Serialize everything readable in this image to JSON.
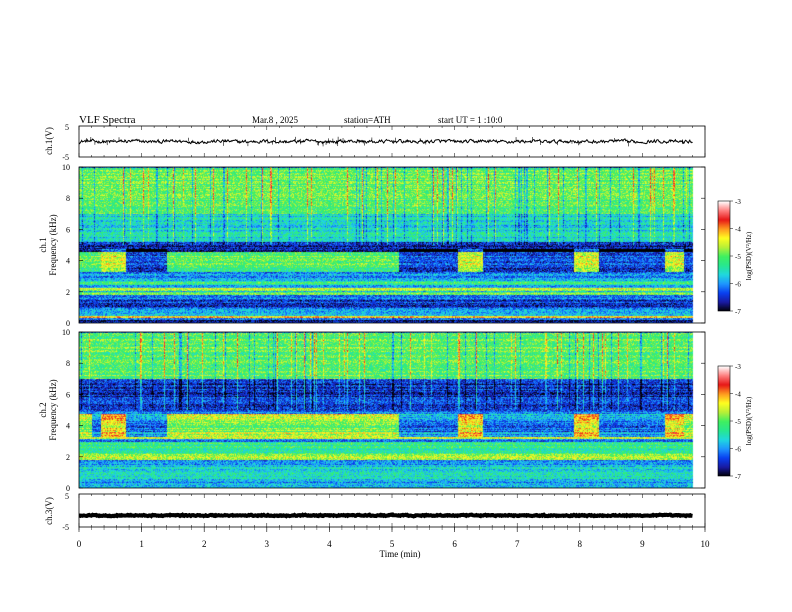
{
  "header": {
    "title": "VLF Spectra",
    "date": "Mar.8 , 2025",
    "station": "station=ATH",
    "start": "start UT = 1 :10:0"
  },
  "colors": {
    "trace": "#000000",
    "colormap": [
      "#000000",
      "#1a1aa0",
      "#0a3ff0",
      "#1e96ff",
      "#20d8e0",
      "#28e890",
      "#40f060",
      "#b8f038",
      "#ffff20",
      "#ff9a20",
      "#e81818",
      "#ff8080",
      "#ffffff"
    ]
  },
  "chart_data": [
    {
      "type": "line",
      "panel": "ch1-waveform",
      "ylabel": "ch.1(V)",
      "yticklabels": [
        "5",
        "-5"
      ],
      "ylim": [
        -5,
        5
      ],
      "xlim": [
        0,
        10
      ],
      "x_extent": [
        0,
        9.8
      ],
      "series": [
        {
          "level": 0,
          "amplitude": 0.45,
          "spike_amplitude": 1.6
        }
      ]
    },
    {
      "type": "heatmap",
      "panel": "ch1-spectrogram",
      "ylabel_top": "ch.1",
      "ylabel": "Frequency (kHz)",
      "ylim": [
        0,
        10
      ],
      "yticks": [
        0,
        2,
        4,
        6,
        8,
        10
      ],
      "xlim": [
        0,
        10
      ],
      "x_extent": [
        0,
        9.8
      ],
      "dark_windows_min": [
        [
          0.35,
          0.75
        ],
        [
          0.75,
          1.4
        ],
        [
          5.1,
          6.05
        ],
        [
          6.45,
          7.9
        ],
        [
          8.3,
          9.35
        ],
        [
          9.65,
          9.8
        ]
      ],
      "bright_windows_min": [
        [
          0.35,
          0.75
        ],
        [
          6.05,
          6.45
        ],
        [
          7.9,
          8.3
        ],
        [
          9.35,
          9.65
        ]
      ],
      "bands_khz": [
        {
          "f": [
            0.05,
            0.25
          ],
          "level": -6.6
        },
        {
          "f": [
            0.35,
            0.45
          ],
          "level": -4.2
        },
        {
          "f": [
            0.55,
            0.9
          ],
          "level": -5.8
        },
        {
          "f": [
            1.0,
            1.6
          ],
          "level": -6.4
        },
        {
          "f": [
            1.8,
            2.0
          ],
          "level": -5.0
        },
        {
          "f": [
            2.1,
            2.3
          ],
          "level": -4.6
        },
        {
          "f": [
            2.5,
            2.7
          ],
          "level": -5.2
        },
        {
          "f": [
            3.3,
            3.7
          ],
          "level": -5.3
        },
        {
          "f": [
            3.7,
            4.6
          ],
          "level": -5.0
        },
        {
          "f": [
            4.6,
            5.2
          ],
          "level": -6.6
        },
        {
          "f": [
            5.2,
            7.0
          ],
          "level": -5.6
        },
        {
          "f": [
            7.0,
            10.0
          ],
          "level": -5.0
        }
      ],
      "colorbar": {
        "label": "log(PSD)(V²/Hz)",
        "ticks": [
          "-3",
          "-4",
          "-5",
          "-6",
          "-7"
        ],
        "range": [
          -7,
          -3
        ]
      }
    },
    {
      "type": "heatmap",
      "panel": "ch2-spectrogram",
      "ylabel_top": "ch.2",
      "ylabel": "Frequency (kHz)",
      "ylim": [
        0,
        10
      ],
      "yticks": [
        0,
        2,
        4,
        6,
        8,
        10
      ],
      "xlim": [
        0,
        10
      ],
      "x_extent": [
        0,
        9.8
      ],
      "dark_windows_min": [
        [
          0.2,
          1.4
        ],
        [
          5.1,
          6.05
        ],
        [
          6.45,
          7.9
        ],
        [
          8.3,
          9.35
        ]
      ],
      "bright_windows_min": [
        [
          0.35,
          0.75
        ],
        [
          6.05,
          6.45
        ],
        [
          7.9,
          8.3
        ],
        [
          9.35,
          9.65
        ]
      ],
      "bands_khz": [
        {
          "f": [
            0.05,
            0.3
          ],
          "level": -5.8
        },
        {
          "f": [
            0.5,
            1.5
          ],
          "level": -5.6
        },
        {
          "f": [
            1.8,
            2.2
          ],
          "level": -4.6
        },
        {
          "f": [
            2.2,
            3.0
          ],
          "level": -5.3
        },
        {
          "f": [
            3.2,
            3.6
          ],
          "level": -4.6
        },
        {
          "f": [
            3.6,
            4.4
          ],
          "level": -4.9
        },
        {
          "f": [
            4.4,
            4.8
          ],
          "level": -4.4
        },
        {
          "f": [
            5.0,
            7.0
          ],
          "level": -6.5
        },
        {
          "f": [
            7.0,
            10.0
          ],
          "level": -5.0
        }
      ],
      "colorbar": {
        "label": "log(PSD)(V²/Hz)",
        "ticks": [
          "-3",
          "-4",
          "-5",
          "-6",
          "-7"
        ],
        "range": [
          -7,
          -3
        ]
      }
    },
    {
      "type": "line",
      "panel": "ch3-waveform",
      "ylabel": "ch.3(V)",
      "yticklabels": [
        "5",
        "-5"
      ],
      "ylim": [
        -5,
        5
      ],
      "xlim": [
        0,
        10
      ],
      "x_extent": [
        0,
        9.8
      ],
      "xlabel": "Time (min)",
      "xticks": [
        "0",
        "1",
        "2",
        "3",
        "4",
        "5",
        "6",
        "7",
        "8",
        "9",
        "10"
      ],
      "series": [
        {
          "level": -1.5,
          "amplitude": 0.15
        }
      ]
    }
  ]
}
